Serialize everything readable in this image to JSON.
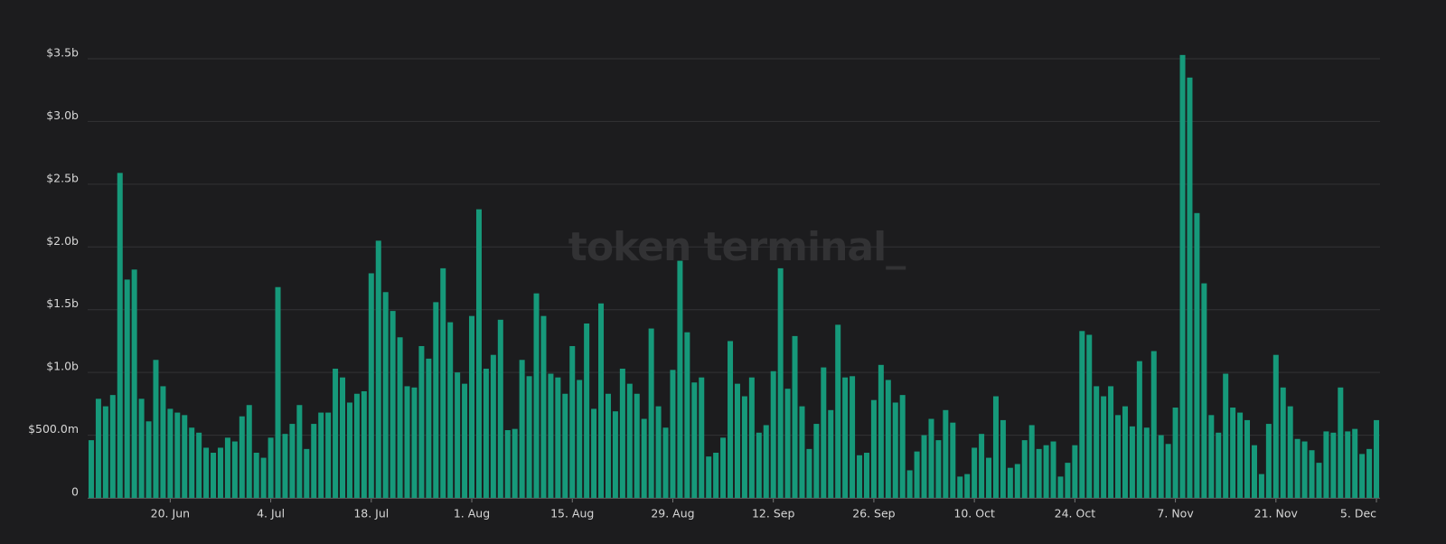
{
  "chart_data": {
    "type": "bar",
    "watermark": "token terminal_",
    "categories": [
      null,
      null,
      null,
      null,
      null,
      null,
      null,
      null,
      null,
      null,
      null,
      "20. Jun",
      null,
      null,
      null,
      null,
      null,
      null,
      null,
      null,
      null,
      null,
      null,
      null,
      null,
      "4. Jul",
      null,
      null,
      null,
      null,
      null,
      null,
      null,
      null,
      null,
      null,
      null,
      null,
      null,
      "18. Jul",
      null,
      null,
      null,
      null,
      null,
      null,
      null,
      null,
      null,
      null,
      null,
      null,
      null,
      "1. Aug",
      null,
      null,
      null,
      null,
      null,
      null,
      null,
      null,
      null,
      null,
      null,
      null,
      null,
      "15. Aug",
      null,
      null,
      null,
      null,
      null,
      null,
      null,
      null,
      null,
      null,
      null,
      null,
      null,
      "29. Aug",
      null,
      null,
      null,
      null,
      null,
      null,
      null,
      null,
      null,
      null,
      null,
      null,
      null,
      "12. Sep",
      null,
      null,
      null,
      null,
      null,
      null,
      null,
      null,
      null,
      null,
      null,
      null,
      null,
      "26. Sep",
      null,
      null,
      null,
      null,
      null,
      null,
      null,
      null,
      null,
      null,
      null,
      null,
      null,
      "10. Oct",
      null,
      null,
      null,
      null,
      null,
      null,
      null,
      null,
      null,
      null,
      null,
      null,
      null,
      "24. Oct",
      null,
      null,
      null,
      null,
      null,
      null,
      null,
      null,
      null,
      null,
      null,
      null,
      null,
      "7. Nov",
      null,
      null,
      null,
      null,
      null,
      null,
      null,
      null,
      null,
      null,
      null,
      null,
      null,
      "21. Nov",
      null,
      null,
      null,
      null,
      null,
      null,
      null,
      null,
      null,
      null,
      null,
      null,
      null,
      "5. Dec"
    ],
    "values": [
      0.46,
      0.79,
      0.73,
      0.82,
      2.59,
      1.74,
      1.82,
      0.79,
      0.61,
      1.1,
      0.89,
      0.71,
      0.68,
      0.66,
      0.56,
      0.52,
      0.4,
      0.36,
      0.4,
      0.48,
      0.45,
      0.65,
      0.74,
      0.36,
      0.32,
      0.48,
      1.68,
      0.51,
      0.59,
      0.74,
      0.39,
      0.59,
      0.68,
      0.68,
      1.03,
      0.96,
      0.76,
      0.83,
      0.85,
      1.79,
      2.05,
      1.64,
      1.49,
      1.28,
      0.89,
      0.88,
      1.21,
      1.11,
      1.56,
      1.83,
      1.4,
      1.0,
      0.91,
      1.45,
      2.3,
      1.03,
      1.14,
      1.42,
      0.54,
      0.55,
      1.1,
      0.97,
      1.63,
      1.45,
      0.99,
      0.96,
      0.83,
      1.21,
      0.94,
      1.39,
      0.71,
      1.55,
      0.83,
      0.69,
      1.03,
      0.91,
      0.83,
      0.63,
      1.35,
      0.73,
      0.56,
      1.02,
      1.89,
      1.32,
      0.92,
      0.96,
      0.33,
      0.36,
      0.48,
      1.25,
      0.91,
      0.81,
      0.96,
      0.52,
      0.58,
      1.01,
      1.83,
      0.87,
      1.29,
      0.73,
      0.39,
      0.59,
      1.04,
      0.7,
      1.38,
      0.96,
      0.97,
      0.34,
      0.36,
      0.78,
      1.06,
      0.94,
      0.76,
      0.82,
      0.22,
      0.37,
      0.5,
      0.63,
      0.46,
      0.7,
      0.6,
      0.17,
      0.19,
      0.4,
      0.51,
      0.32,
      0.81,
      0.62,
      0.24,
      0.27,
      0.46,
      0.58,
      0.39,
      0.42,
      0.45,
      0.17,
      0.28,
      0.42,
      1.33,
      1.3,
      0.89,
      0.81,
      0.89,
      0.66,
      0.73,
      0.57,
      1.09,
      0.56,
      1.17,
      0.5,
      0.43,
      0.72,
      3.53,
      3.35,
      2.27,
      1.71,
      0.66,
      0.52,
      0.99,
      0.72,
      0.68,
      0.62,
      0.42,
      0.19,
      0.59,
      1.14,
      0.88,
      0.73,
      0.47,
      0.45,
      0.38,
      0.28,
      0.53,
      0.52,
      0.88,
      0.53,
      0.55,
      0.35,
      0.39,
      0.62
    ],
    "color": "#16997a",
    "ylim": [
      0,
      3.5
    ],
    "yticks": [
      0,
      {
        "value": 0.5,
        "label": "$500.0m"
      },
      {
        "value": 1.0,
        "label": "$1.0b"
      },
      {
        "value": 1.5,
        "label": "$1.5b"
      },
      {
        "value": 2.0,
        "label": "$2.0b"
      },
      {
        "value": 2.5,
        "label": "$2.5b"
      },
      {
        "value": 3.0,
        "label": "$3.0b"
      },
      {
        "value": 3.5,
        "label": "$3.5b"
      }
    ],
    "grid": true
  }
}
